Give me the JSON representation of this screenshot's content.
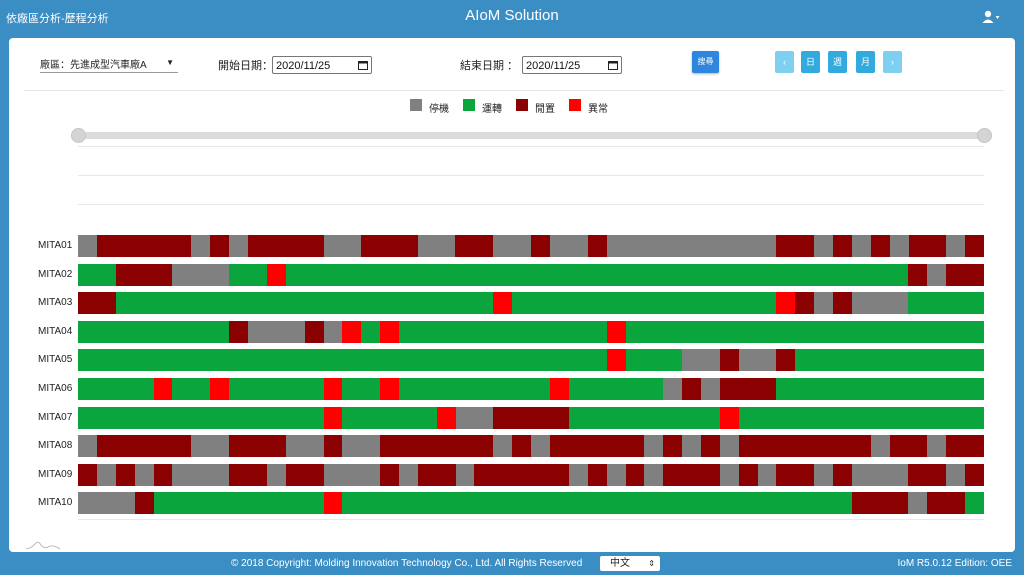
{
  "header": {
    "breadcrumb": "依廠區分析-歷程分析",
    "title": "AIoM Solution",
    "user_icon": "user-icon"
  },
  "filters": {
    "factory_label": "廠區：",
    "factory_value": "先進成型汽車廠A",
    "start_label": "開始日期：",
    "start_value": "2020/11/25",
    "end_label": "結束日期 ：",
    "end_value": "2020/11/25",
    "search_label": "搜尋",
    "prev_icon": "chevron-left-icon",
    "day_label": "日",
    "week_label": "週",
    "month_label": "月",
    "next_icon": "chevron-right-icon"
  },
  "legend": [
    {
      "label": "停機",
      "color": "#808080"
    },
    {
      "label": "運轉",
      "color": "#0aa53c"
    },
    {
      "label": "閒置",
      "color": "#8b0000"
    },
    {
      "label": "異常",
      "color": "#ff0000"
    }
  ],
  "colors": {
    "S": "#808080",
    "R": "#0aa53c",
    "I": "#8b0000",
    "A": "#ff0000"
  },
  "machines": [
    {
      "name": "MITA01",
      "segments": [
        [
          "S",
          0,
          19
        ],
        [
          "I",
          19,
          113
        ],
        [
          "S",
          113,
          132
        ],
        [
          "I",
          132,
          151
        ],
        [
          "S",
          151,
          170
        ],
        [
          "I",
          170,
          246
        ],
        [
          "S",
          246,
          283
        ],
        [
          "I",
          283,
          340
        ],
        [
          "S",
          340,
          377
        ],
        [
          "I",
          377,
          415
        ],
        [
          "S",
          415,
          453
        ],
        [
          "I",
          453,
          472
        ],
        [
          "S",
          472,
          510
        ],
        [
          "I",
          510,
          529
        ],
        [
          "S",
          529,
          698
        ],
        [
          "I",
          698,
          736
        ],
        [
          "S",
          736,
          755
        ],
        [
          "I",
          755,
          774
        ],
        [
          "S",
          774,
          793
        ],
        [
          "I",
          793,
          812
        ],
        [
          "S",
          812,
          831
        ],
        [
          "I",
          831,
          868
        ],
        [
          "S",
          868,
          887
        ],
        [
          "I",
          887,
          906
        ]
      ]
    },
    {
      "name": "MITA02",
      "segments": [
        [
          "R",
          0,
          38
        ],
        [
          "I",
          38,
          94
        ],
        [
          "S",
          94,
          151
        ],
        [
          "R",
          151,
          189
        ],
        [
          "A",
          189,
          208
        ],
        [
          "R",
          208,
          830
        ],
        [
          "I",
          830,
          849
        ],
        [
          "S",
          849,
          868
        ],
        [
          "I",
          868,
          906
        ]
      ]
    },
    {
      "name": "MITA03",
      "segments": [
        [
          "I",
          0,
          38
        ],
        [
          "R",
          38,
          415
        ],
        [
          "A",
          415,
          434
        ],
        [
          "R",
          434,
          698
        ],
        [
          "A",
          698,
          717
        ],
        [
          "I",
          717,
          736
        ],
        [
          "S",
          736,
          755
        ],
        [
          "I",
          755,
          774
        ],
        [
          "S",
          774,
          830
        ],
        [
          "R",
          830,
          906
        ]
      ]
    },
    {
      "name": "MITA04",
      "segments": [
        [
          "R",
          0,
          151
        ],
        [
          "I",
          151,
          170
        ],
        [
          "S",
          170,
          227
        ],
        [
          "I",
          227,
          246
        ],
        [
          "S",
          246,
          264
        ],
        [
          "A",
          264,
          283
        ],
        [
          "R",
          283,
          302
        ],
        [
          "A",
          302,
          321
        ],
        [
          "R",
          321,
          529
        ],
        [
          "A",
          529,
          548
        ],
        [
          "R",
          548,
          906
        ]
      ]
    },
    {
      "name": "MITA05",
      "segments": [
        [
          "R",
          0,
          529
        ],
        [
          "A",
          529,
          548
        ],
        [
          "R",
          548,
          604
        ],
        [
          "S",
          604,
          642
        ],
        [
          "I",
          642,
          661
        ],
        [
          "S",
          661,
          698
        ],
        [
          "I",
          698,
          717
        ],
        [
          "R",
          717,
          906
        ]
      ]
    },
    {
      "name": "MITA06",
      "segments": [
        [
          "R",
          0,
          76
        ],
        [
          "A",
          76,
          94
        ],
        [
          "R",
          94,
          132
        ],
        [
          "A",
          132,
          151
        ],
        [
          "R",
          151,
          246
        ],
        [
          "A",
          246,
          264
        ],
        [
          "R",
          264,
          302
        ],
        [
          "A",
          302,
          321
        ],
        [
          "R",
          321,
          472
        ],
        [
          "A",
          472,
          491
        ],
        [
          "R",
          491,
          585
        ],
        [
          "S",
          585,
          604
        ],
        [
          "I",
          604,
          623
        ],
        [
          "S",
          623,
          642
        ],
        [
          "I",
          642,
          698
        ],
        [
          "R",
          698,
          906
        ]
      ]
    },
    {
      "name": "MITA07",
      "segments": [
        [
          "R",
          0,
          246
        ],
        [
          "A",
          246,
          264
        ],
        [
          "R",
          264,
          359
        ],
        [
          "A",
          359,
          378
        ],
        [
          "S",
          378,
          415
        ],
        [
          "I",
          415,
          491
        ],
        [
          "R",
          491,
          642
        ],
        [
          "A",
          642,
          661
        ],
        [
          "R",
          661,
          906
        ]
      ]
    },
    {
      "name": "MITA08",
      "segments": [
        [
          "S",
          0,
          19
        ],
        [
          "I",
          19,
          113
        ],
        [
          "S",
          113,
          151
        ],
        [
          "I",
          151,
          208
        ],
        [
          "S",
          208,
          246
        ],
        [
          "I",
          246,
          264
        ],
        [
          "S",
          264,
          302
        ],
        [
          "I",
          302,
          415
        ],
        [
          "S",
          415,
          434
        ],
        [
          "I",
          434,
          453
        ],
        [
          "S",
          453,
          472
        ],
        [
          "I",
          472,
          566
        ],
        [
          "S",
          566,
          585
        ],
        [
          "I",
          585,
          604
        ],
        [
          "S",
          604,
          623
        ],
        [
          "I",
          623,
          642
        ],
        [
          "S",
          642,
          661
        ],
        [
          "I",
          661,
          793
        ],
        [
          "S",
          793,
          812
        ],
        [
          "I",
          812,
          849
        ],
        [
          "S",
          849,
          868
        ],
        [
          "I",
          868,
          906
        ]
      ]
    },
    {
      "name": "MITA09",
      "segments": [
        [
          "I",
          0,
          19
        ],
        [
          "S",
          19,
          38
        ],
        [
          "I",
          38,
          57
        ],
        [
          "S",
          57,
          76
        ],
        [
          "I",
          76,
          94
        ],
        [
          "S",
          94,
          151
        ],
        [
          "I",
          151,
          189
        ],
        [
          "S",
          189,
          208
        ],
        [
          "I",
          208,
          246
        ],
        [
          "S",
          246,
          302
        ],
        [
          "I",
          302,
          321
        ],
        [
          "S",
          321,
          340
        ],
        [
          "I",
          340,
          378
        ],
        [
          "S",
          378,
          396
        ],
        [
          "I",
          396,
          491
        ],
        [
          "S",
          491,
          510
        ],
        [
          "I",
          510,
          529
        ],
        [
          "S",
          529,
          548
        ],
        [
          "I",
          548,
          566
        ],
        [
          "S",
          566,
          585
        ],
        [
          "I",
          585,
          642
        ],
        [
          "S",
          642,
          661
        ],
        [
          "I",
          661,
          680
        ],
        [
          "S",
          680,
          698
        ],
        [
          "I",
          698,
          736
        ],
        [
          "S",
          736,
          755
        ],
        [
          "I",
          755,
          774
        ],
        [
          "S",
          774,
          830
        ],
        [
          "I",
          830,
          868
        ],
        [
          "S",
          868,
          887
        ],
        [
          "I",
          887,
          906
        ]
      ]
    },
    {
      "name": "MITA10",
      "segments": [
        [
          "S",
          0,
          57
        ],
        [
          "I",
          57,
          76
        ],
        [
          "R",
          76,
          246
        ],
        [
          "A",
          246,
          264
        ],
        [
          "R",
          264,
          774
        ],
        [
          "I",
          774,
          830
        ],
        [
          "S",
          830,
          849
        ],
        [
          "I",
          849,
          887
        ],
        [
          "R",
          887,
          906
        ]
      ]
    }
  ],
  "footer": {
    "copyright": "© 2018 Copyright: Molding Innovation Technology Co., Ltd. All Rights Reserved",
    "language": "中文",
    "version": "IoM R5.0.12 Edition: OEE"
  }
}
